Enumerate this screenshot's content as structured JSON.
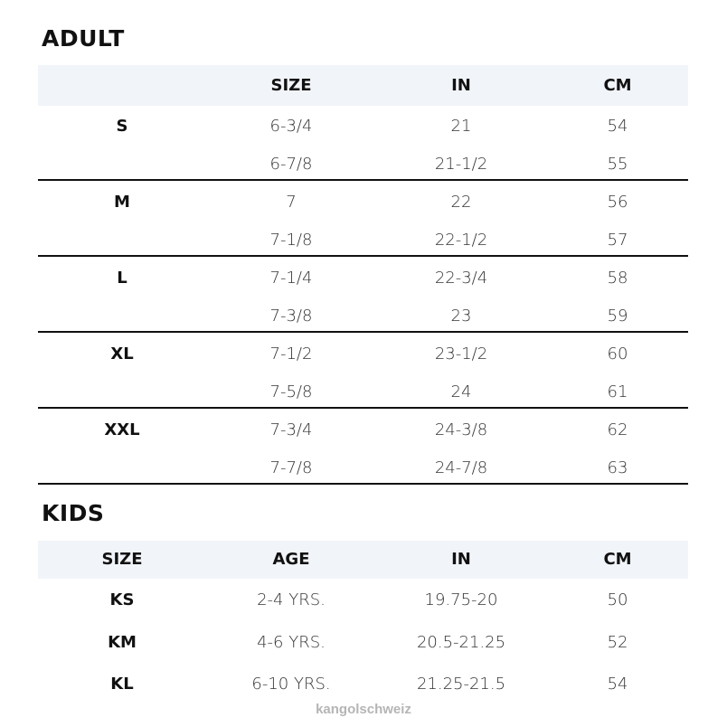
{
  "adult": {
    "title": "ADULT",
    "headers": [
      "",
      "SIZE",
      "IN",
      "CM"
    ],
    "groups": [
      {
        "label": "S",
        "rows": [
          [
            "6-3/4",
            "21",
            "54"
          ],
          [
            "6-7/8",
            "21-1/2",
            "55"
          ]
        ]
      },
      {
        "label": "M",
        "rows": [
          [
            "7",
            "22",
            "56"
          ],
          [
            "7-1/8",
            "22-1/2",
            "57"
          ]
        ]
      },
      {
        "label": "L",
        "rows": [
          [
            "7-1/4",
            "22-3/4",
            "58"
          ],
          [
            "7-3/8",
            "23",
            "59"
          ]
        ]
      },
      {
        "label": "XL",
        "rows": [
          [
            "7-1/2",
            "23-1/2",
            "60"
          ],
          [
            "7-5/8",
            "24",
            "61"
          ]
        ]
      },
      {
        "label": "XXL",
        "rows": [
          [
            "7-3/4",
            "24-3/8",
            "62"
          ],
          [
            "7-7/8",
            "24-7/8",
            "63"
          ]
        ]
      }
    ]
  },
  "kids": {
    "title": "KIDS",
    "headers": [
      "SIZE",
      "AGE",
      "IN",
      "CM"
    ],
    "rows": [
      [
        "KS",
        "2-4 YRS.",
        "19.75-20",
        "50"
      ],
      [
        "KM",
        "4-6 YRS.",
        "20.5-21.25",
        "52"
      ],
      [
        "KL",
        "6-10 YRS.",
        "21.25-21.5",
        "54"
      ]
    ]
  },
  "watermark": "kangolschweiz",
  "colors": {
    "header_band": "#f1f4f8",
    "text": "#111111",
    "watermark": "#b5b5b5"
  }
}
